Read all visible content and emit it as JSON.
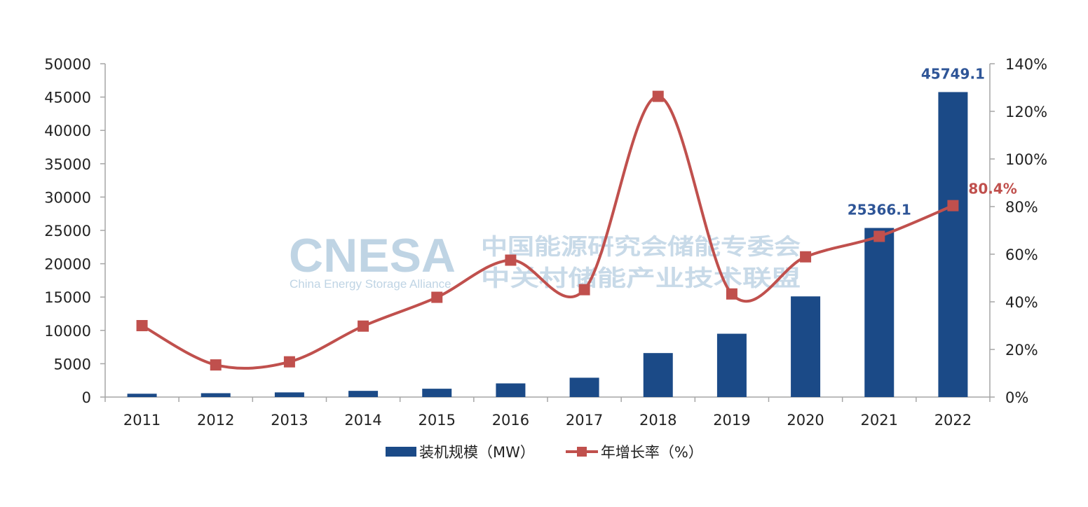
{
  "watermark": {
    "logo": "CNESA",
    "logo_sub": "China Energy Storage Alliance",
    "cn_line1": "中国能源研究会储能专委会",
    "cn_line2": "中关村储能产业技术联盟"
  },
  "chart_data": {
    "type": "bar",
    "categories": [
      "2011",
      "2012",
      "2013",
      "2014",
      "2015",
      "2016",
      "2017",
      "2018",
      "2019",
      "2020",
      "2021",
      "2022"
    ],
    "series": [
      {
        "name": "装机规模（MW）",
        "type": "bar",
        "axis": "left",
        "color": "#1b4a87",
        "values": [
          500,
          580,
          700,
          930,
          1250,
          2050,
          2900,
          6600,
          9500,
          15100,
          25366.1,
          45749.1
        ],
        "data_labels": {
          "10": "25366.1",
          "11": "45749.1"
        }
      },
      {
        "name": "年增长率（%）",
        "type": "line",
        "axis": "right",
        "color": "#c0504d",
        "values": [
          30,
          13.5,
          14.8,
          29.8,
          41.9,
          57.5,
          45.1,
          126.3,
          43.3,
          58.9,
          67.5,
          80.4
        ],
        "data_labels": {
          "11": "80.4%"
        }
      }
    ],
    "y_left": {
      "min": 0,
      "max": 50000,
      "step": 5000
    },
    "y_right": {
      "min": 0,
      "max": 140,
      "step": 20,
      "unit": "%"
    },
    "legend": "bottom-center",
    "grid": false,
    "title": "",
    "xlabel": "",
    "ylabel": ""
  }
}
